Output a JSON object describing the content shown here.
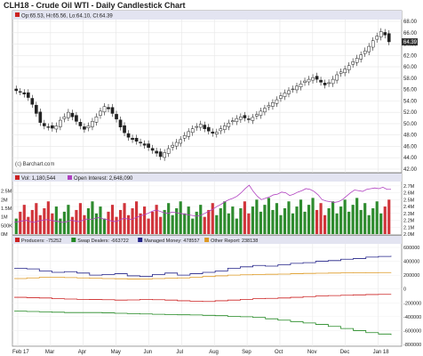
{
  "chart_data": {
    "title": "CLH18 - Crude Oil WTI - Daily Candlestick Chart",
    "type": "candlestick",
    "credit": "(c) Barchart.com",
    "x_labels": [
      "Feb 17",
      "Mar",
      "Apr",
      "May",
      "Jun",
      "Jul",
      "Aug",
      "Sep",
      "Oct",
      "Nov",
      "Dec",
      "Jan 18"
    ],
    "price_panel": {
      "legend": "Op:65.53, Hi:65.56, Lo:64.10, Cl:64.39",
      "ylim": [
        42,
        68
      ],
      "y_ticks": [
        42,
        44,
        46,
        48,
        50,
        52,
        54,
        56,
        58,
        60,
        62,
        64,
        66,
        68
      ],
      "last_price_label": "64.39",
      "series": {
        "name": "close",
        "values": [
          55.8,
          55.6,
          55.2,
          54.6,
          53.4,
          51.8,
          50.2,
          49.6,
          49.4,
          49.2,
          49.6,
          50.6,
          51.2,
          52.0,
          51.2,
          50.4,
          49.6,
          49.0,
          49.6,
          50.4,
          51.2,
          52.2,
          53.0,
          52.6,
          51.8,
          50.8,
          49.4,
          48.4,
          47.6,
          47.2,
          46.9,
          46.6,
          46.2,
          45.8,
          45.3,
          44.8,
          44.2,
          44.9,
          45.6,
          46.2,
          46.7,
          47.2,
          47.9,
          48.6,
          49.1,
          49.5,
          49.9,
          49.1,
          48.7,
          48.3,
          48.5,
          49.1,
          49.6,
          50.1,
          50.5,
          50.9,
          51.2,
          51.0,
          50.7,
          51.1,
          51.6,
          52.2,
          52.7,
          53.2,
          53.7,
          54.2,
          54.9,
          55.4,
          55.8,
          56.1,
          56.6,
          57.0,
          57.5,
          57.8,
          58.1,
          57.8,
          57.3,
          56.8,
          57.2,
          57.8,
          58.6,
          59.1,
          59.6,
          60.2,
          60.9,
          61.5,
          62.1,
          62.8,
          63.6,
          64.6,
          65.4,
          66.2,
          65.6,
          64.4
        ]
      }
    },
    "volume_panel": {
      "vol_legend": "Vol: 1,180,544",
      "oi_legend": "Open Interest: 2,648,090",
      "vol_ticks": [
        "0M",
        "500K",
        "1M",
        "1.5M",
        "2M",
        "2.5M"
      ],
      "oi_ticks": [
        "2.0M",
        "2.1M",
        "2.2M",
        "2.3M",
        "2.4M",
        "2.5M",
        "2.6M",
        "2.7M"
      ],
      "vol_ylim": [
        0,
        3.0
      ],
      "oi_ylim": [
        2.0,
        2.75
      ],
      "colors": {
        "up": "#2e8b2e",
        "down": "#d0343a",
        "oi": "#b040c0"
      },
      "open_interest": [
        2.17,
        2.18,
        2.19,
        2.2,
        2.18,
        2.17,
        2.19,
        2.2,
        2.21,
        2.2,
        2.19,
        2.18,
        2.17,
        2.18,
        2.2,
        2.19,
        2.18,
        2.2,
        2.22,
        2.21,
        2.23,
        2.24,
        2.22,
        2.21,
        2.19,
        2.18,
        2.2,
        2.23,
        2.22,
        2.21,
        2.24,
        2.26,
        2.28,
        2.3,
        2.33,
        2.35,
        2.33,
        2.31,
        2.3,
        2.32,
        2.31,
        2.3,
        2.29,
        2.28,
        2.27,
        2.26,
        2.27,
        2.3,
        2.33,
        2.36,
        2.4,
        2.43,
        2.47,
        2.5,
        2.52,
        2.55,
        2.6,
        2.66,
        2.71,
        2.62,
        2.55,
        2.5,
        2.52,
        2.54,
        2.57,
        2.58,
        2.61,
        2.6,
        2.56,
        2.58,
        2.61,
        2.63,
        2.66,
        2.65,
        2.62,
        2.57,
        2.5,
        2.48,
        2.47,
        2.46,
        2.47,
        2.5,
        2.55,
        2.6,
        2.64,
        2.63,
        2.62,
        2.65,
        2.66,
        2.67,
        2.66,
        2.68,
        2.65,
        2.65
      ]
    },
    "cot_panel": {
      "legend": [
        {
          "label": "Producers: -75252",
          "color": "#cc2222",
          "id": "producers"
        },
        {
          "label": "Swap Dealers: -663722",
          "color": "#228822",
          "id": "swap"
        },
        {
          "label": "Managed Money: 478557",
          "color": "#222288",
          "id": "managed"
        },
        {
          "label": "Other Report: 238138",
          "color": "#dd9922",
          "id": "other"
        }
      ],
      "y_ticks": [
        "600000",
        "400000",
        "200000",
        "0",
        "-200000",
        "-400000",
        "-600000",
        "-800000"
      ],
      "ylim": [
        -800000,
        600000
      ],
      "series": [
        {
          "name": "Producers",
          "values": [
            -120000,
            -125000,
            -130000,
            -140000,
            -145000,
            -150000,
            -152000,
            -155000,
            -160000,
            -158000,
            -150000,
            -155000,
            -160000,
            -170000,
            -175000,
            -180000,
            -170000,
            -160000,
            -150000,
            -140000,
            -135000,
            -130000,
            -120000,
            -110000,
            -100000,
            -95000,
            -90000,
            -85000,
            -80000,
            -78000,
            -75252
          ]
        },
        {
          "name": "Swap Dealers",
          "values": [
            -320000,
            -325000,
            -330000,
            -335000,
            -340000,
            -340000,
            -340000,
            -345000,
            -350000,
            -355000,
            -360000,
            -365000,
            -370000,
            -372000,
            -375000,
            -380000,
            -385000,
            -395000,
            -400000,
            -410000,
            -430000,
            -450000,
            -470000,
            -490000,
            -510000,
            -540000,
            -570000,
            -600000,
            -630000,
            -650000,
            -663722
          ]
        },
        {
          "name": "Managed Money",
          "values": [
            300000,
            290000,
            260000,
            240000,
            250000,
            230000,
            200000,
            210000,
            220000,
            190000,
            180000,
            210000,
            230000,
            200000,
            220000,
            240000,
            260000,
            300000,
            320000,
            340000,
            330000,
            350000,
            370000,
            380000,
            400000,
            410000,
            430000,
            440000,
            460000,
            470000,
            478557
          ]
        },
        {
          "name": "Other Report",
          "values": [
            150000,
            160000,
            170000,
            170000,
            165000,
            160000,
            155000,
            150000,
            148000,
            145000,
            146000,
            150000,
            155000,
            160000,
            170000,
            180000,
            190000,
            200000,
            205000,
            210000,
            212000,
            215000,
            220000,
            225000,
            228000,
            230000,
            232000,
            234000,
            236000,
            237000,
            238138
          ]
        }
      ]
    }
  }
}
